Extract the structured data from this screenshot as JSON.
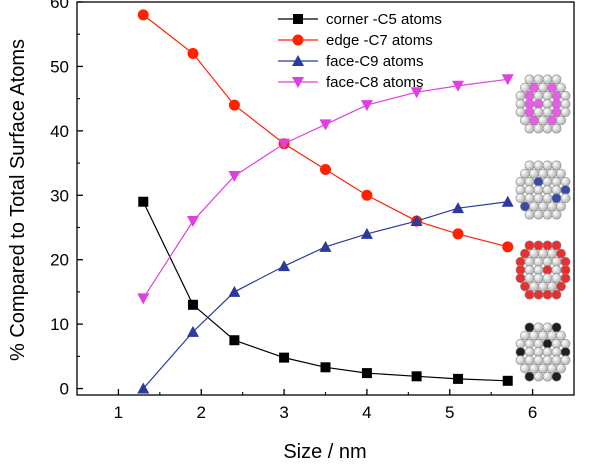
{
  "chart_data": {
    "type": "line",
    "title": "",
    "xlabel": "Size / nm",
    "ylabel": "% Compared to Total Surface Atoms",
    "xlim": [
      0.5,
      6.5
    ],
    "ylim": [
      -1,
      60
    ],
    "xticks": [
      1,
      2,
      3,
      4,
      5,
      6
    ],
    "yticks": [
      0,
      10,
      20,
      30,
      40,
      50,
      60
    ],
    "grid": false,
    "legend_position": "top-center",
    "x": [
      1.3,
      1.9,
      2.4,
      3.0,
      3.5,
      4.0,
      4.6,
      5.1,
      5.7
    ],
    "series": [
      {
        "name": "corner -C5 atoms",
        "color": "#000000",
        "marker": "square",
        "values": [
          29,
          13,
          7.5,
          4.8,
          3.3,
          2.4,
          1.9,
          1.5,
          1.2
        ]
      },
      {
        "name": "edge -C7 atoms",
        "color": "#ff2200",
        "marker": "circle",
        "values": [
          58,
          52,
          44,
          38,
          34,
          30,
          26,
          24,
          22
        ]
      },
      {
        "name": "face-C9 atoms",
        "color": "#2b3a9e",
        "marker": "triangle-up",
        "values": [
          0,
          8.8,
          15,
          19,
          22,
          24,
          26,
          28,
          29
        ]
      },
      {
        "name": "face-C8 atoms",
        "color": "#e040e0",
        "marker": "triangle-down",
        "values": [
          14,
          26,
          33,
          38,
          41,
          44,
          46,
          47,
          48
        ]
      }
    ],
    "cluster_icons": [
      {
        "name": "cluster-face-c8-icon",
        "highlight": "#e85ce8"
      },
      {
        "name": "cluster-face-c9-icon",
        "highlight": "#3a4aa8"
      },
      {
        "name": "cluster-edge-c7-icon",
        "highlight": "#e83030"
      },
      {
        "name": "cluster-corner-c5-icon",
        "highlight": "#202020"
      }
    ]
  }
}
